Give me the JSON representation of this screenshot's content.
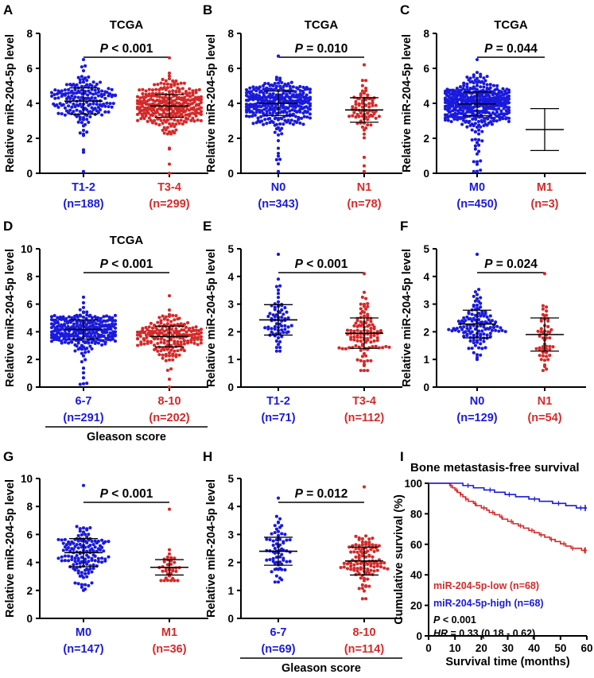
{
  "figure": {
    "ylabel": "Relative miR-204-5p level",
    "colors": {
      "low_group": "#1a1adb",
      "high_group": "#d42a2a",
      "axis": "#000000"
    }
  },
  "chart_data": [
    {
      "type": "scatter",
      "label": "A",
      "title": "TCGA",
      "ylabel": "Relative miR-204-5p level",
      "ylim": [
        0,
        8
      ],
      "yticks": [
        0,
        2,
        4,
        6,
        8
      ],
      "p_prefix": "P",
      "p_text": " < 0.001",
      "group_label": "",
      "groups": [
        {
          "name": "T1-2",
          "n_label": "(n=188)",
          "n": 188,
          "mean": 4.13,
          "sd": 0.75,
          "min": 0.1,
          "max": 6.5
        },
        {
          "name": "T3-4",
          "n_label": "(n=299)",
          "n": 299,
          "mean": 3.85,
          "sd": 0.65,
          "min": 0.0,
          "max": 6.6
        }
      ]
    },
    {
      "type": "scatter",
      "label": "B",
      "title": "TCGA",
      "ylabel": "Relative miR-204-5p level",
      "ylim": [
        0,
        8
      ],
      "yticks": [
        0,
        2,
        4,
        6,
        8
      ],
      "p_prefix": "P",
      "p_text": " = 0.010",
      "group_label": "",
      "groups": [
        {
          "name": "N0",
          "n_label": "(n=343)",
          "n": 343,
          "mean": 4.0,
          "sd": 0.7,
          "min": 0.1,
          "max": 6.7
        },
        {
          "name": "N1",
          "n_label": "(n=78)",
          "n": 78,
          "mean": 3.62,
          "sd": 0.7,
          "min": 0.1,
          "max": 6.2
        }
      ]
    },
    {
      "type": "scatter",
      "label": "C",
      "title": "TCGA",
      "ylabel": "Relative miR-204-5p level",
      "ylim": [
        0,
        8
      ],
      "yticks": [
        0,
        2,
        4,
        6,
        8
      ],
      "p_prefix": "P",
      "p_text": " = 0.044",
      "group_label": "",
      "groups": [
        {
          "name": "M0",
          "n_label": "(n=450)",
          "n": 450,
          "mean": 3.97,
          "sd": 0.68,
          "min": 0.1,
          "max": 6.5
        },
        {
          "name": "M1",
          "n_label": "(n=3)",
          "n": 3,
          "mean": 2.5,
          "sd": 1.2,
          "min": 1.8,
          "max": 3.7,
          "no_points": true
        }
      ]
    },
    {
      "type": "scatter",
      "label": "D",
      "title": "TCGA",
      "ylabel": "Relative miR-204-5p level",
      "ylim": [
        0,
        10
      ],
      "yticks": [
        0,
        2,
        4,
        6,
        8,
        10
      ],
      "p_prefix": "P",
      "p_text": " < 0.001",
      "group_label": "Gleason score",
      "groups": [
        {
          "name": "6-7",
          "n_label": "(n=291)",
          "n": 291,
          "mean": 4.17,
          "sd": 0.7,
          "min": 0.2,
          "max": 6.5
        },
        {
          "name": "8-10",
          "n_label": "(n=202)",
          "n": 202,
          "mean": 3.66,
          "sd": 0.75,
          "min": 0.0,
          "max": 6.6
        }
      ]
    },
    {
      "type": "scatter",
      "label": "E",
      "title": "",
      "ylabel": "Relative miR-204-5p level",
      "ylim": [
        0,
        5
      ],
      "yticks": [
        0,
        1,
        2,
        3,
        4,
        5
      ],
      "p_prefix": "P",
      "p_text": " < 0.001",
      "group_label": "",
      "groups": [
        {
          "name": "T1-2",
          "n_label": "(n=71)",
          "n": 71,
          "mean": 2.43,
          "sd": 0.55,
          "min": 1.3,
          "max": 4.8
        },
        {
          "name": "T3-4",
          "n_label": "(n=112)",
          "n": 112,
          "mean": 1.95,
          "sd": 0.55,
          "min": 0.6,
          "max": 4.1
        }
      ]
    },
    {
      "type": "scatter",
      "label": "F",
      "title": "",
      "ylabel": "Relative miR-204-5p level",
      "ylim": [
        0,
        5
      ],
      "yticks": [
        0,
        1,
        2,
        3,
        4,
        5
      ],
      "p_prefix": "P",
      "p_text": " = 0.024",
      "group_label": "",
      "groups": [
        {
          "name": "N0",
          "n_label": "(n=129)",
          "n": 129,
          "mean": 2.28,
          "sd": 0.5,
          "min": 1.0,
          "max": 4.8
        },
        {
          "name": "N1",
          "n_label": "(n=54)",
          "n": 54,
          "mean": 1.9,
          "sd": 0.6,
          "min": 0.6,
          "max": 4.1
        }
      ]
    },
    {
      "type": "scatter",
      "label": "G",
      "title": "",
      "ylabel": "Relative miR-204-5p level",
      "ylim": [
        0,
        10
      ],
      "yticks": [
        0,
        2,
        4,
        6,
        8,
        10
      ],
      "p_prefix": "P",
      "p_text": " < 0.001",
      "group_label": "",
      "groups": [
        {
          "name": "M0",
          "n_label": "(n=147)",
          "n": 147,
          "mean": 4.7,
          "sd": 1.0,
          "min": 2.0,
          "max": 9.5
        },
        {
          "name": "M1",
          "n_label": "(n=36)",
          "n": 36,
          "mean": 3.65,
          "sd": 0.55,
          "min": 2.7,
          "max": 7.8
        }
      ]
    },
    {
      "type": "scatter",
      "label": "H",
      "title": "",
      "ylabel": "Relative miR-204-5p level",
      "ylim": [
        0,
        5
      ],
      "yticks": [
        0,
        1,
        2,
        3,
        4,
        5
      ],
      "p_prefix": "P",
      "p_text": " = 0.012",
      "group_label": "Gleason score",
      "groups": [
        {
          "name": "6-7",
          "n_label": "(n=69)",
          "n": 69,
          "mean": 2.4,
          "sd": 0.5,
          "min": 1.3,
          "max": 4.3
        },
        {
          "name": "8-10",
          "n_label": "(n=114)",
          "n": 114,
          "mean": 2.05,
          "sd": 0.5,
          "min": 0.7,
          "max": 4.7
        }
      ]
    },
    {
      "type": "line",
      "label": "I",
      "title": "Bone metastasis-free survival",
      "xlabel": "Survival time (months)",
      "ylabel": "Cumulative survival (%)",
      "xlim": [
        0,
        60
      ],
      "ylim": [
        0,
        100
      ],
      "xticks": [
        0,
        10,
        20,
        30,
        40,
        50,
        60
      ],
      "yticks": [
        0,
        20,
        40,
        60,
        80,
        100
      ],
      "series": [
        {
          "name": "miR-204-5p-low (n=68)",
          "color": "#d42a2a",
          "x": [
            0,
            7,
            8,
            9,
            10,
            11,
            12,
            13,
            14,
            15,
            17,
            18,
            20,
            22,
            23,
            25,
            27,
            28,
            30,
            32,
            34,
            36,
            38,
            40,
            42,
            44,
            46,
            48,
            50,
            52,
            54,
            56,
            58,
            60
          ],
          "y": [
            100,
            100,
            98.5,
            97,
            95.5,
            94,
            92.6,
            91.1,
            89.7,
            88.2,
            86.8,
            85.3,
            83.8,
            82.4,
            80.9,
            79.4,
            77.9,
            76.5,
            75,
            73.5,
            72.1,
            70.6,
            69.1,
            67.6,
            66.2,
            64.7,
            63.2,
            61.8,
            60.3,
            58.8,
            57.4,
            57.4,
            56,
            56
          ]
        },
        {
          "name": "miR-204-5p-high (n=68)",
          "color": "#1a1adb",
          "x": [
            0,
            10,
            13,
            17,
            21,
            25,
            29,
            33,
            38,
            42,
            47,
            52,
            56,
            60
          ],
          "y": [
            100,
            100,
            98.5,
            97,
            95.6,
            94.1,
            92.6,
            91.2,
            89.7,
            88.2,
            86.8,
            85.3,
            83.8,
            83.8
          ]
        }
      ],
      "stats": {
        "p_prefix": "P",
        "p_text": " < 0.001",
        "hr_prefix": "HR",
        "hr_text": " = 0.33 (0.18 - 0.62)"
      }
    }
  ]
}
